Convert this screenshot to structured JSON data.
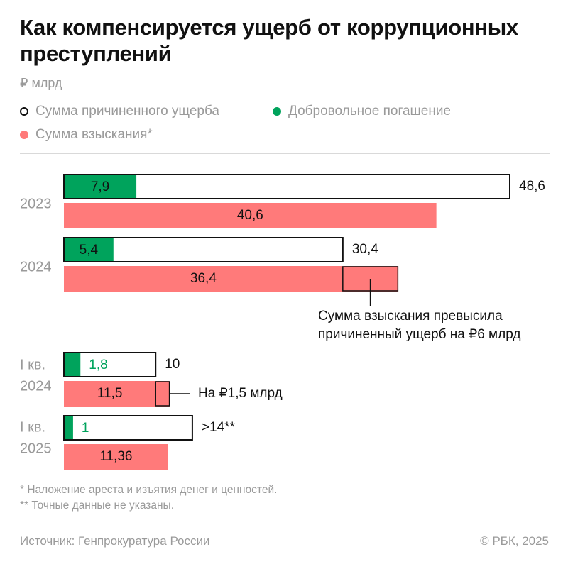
{
  "title": "Как компенсируется ущерб от коррупционных преступлений",
  "unit": "₽ млрд",
  "colors": {
    "damage_outline": "#111111",
    "voluntary": "#00a35c",
    "recovery": "#ff7a7a",
    "muted": "#9a9a9a"
  },
  "legend": [
    {
      "label": "Сумма причиненного ущерба",
      "swatch": "outline"
    },
    {
      "label": "Добровольное погашение",
      "swatch": "#00a35c"
    },
    {
      "label": "Сумма взыскания*",
      "swatch": "#ff7a7a"
    }
  ],
  "chart_data": {
    "type": "bar",
    "orientation": "horizontal",
    "categories": [
      "2023",
      "2024",
      "I кв. 2024",
      "I кв. 2025"
    ],
    "category_labels": [
      [
        "2023"
      ],
      [
        "2024"
      ],
      [
        "I кв.",
        "2024"
      ],
      [
        "I кв.",
        "2025"
      ]
    ],
    "series": [
      {
        "name": "Сумма причиненного ущерба",
        "values": [
          48.6,
          30.4,
          10,
          14
        ],
        "labels": [
          "48,6",
          "30,4",
          "10",
          ">14**"
        ]
      },
      {
        "name": "Добровольное погашение",
        "values": [
          7.9,
          5.4,
          1.8,
          1
        ],
        "labels": [
          "7,9",
          "5,4",
          "1,8",
          "1"
        ]
      },
      {
        "name": "Сумма взыскания*",
        "values": [
          40.6,
          36.4,
          11.5,
          11.36
        ],
        "labels": [
          "40,6",
          "36,4",
          "11,5",
          "11,36"
        ]
      }
    ],
    "annotations": [
      {
        "category": "2024",
        "text": [
          "Сумма взыскания превысила",
          "причиненный ущерб на ₽6 млрд"
        ]
      },
      {
        "category": "I кв. 2024",
        "text": [
          "На ₽1,5 млрд"
        ]
      }
    ],
    "xlim": [
      0,
      48.6
    ],
    "grid": false
  },
  "footnotes": [
    "* Наложение ареста и изъятия денег и ценностей.",
    "** Точные данные не указаны."
  ],
  "source": "Источник: Генпрокуратура России",
  "copyright": "© РБК, 2025"
}
